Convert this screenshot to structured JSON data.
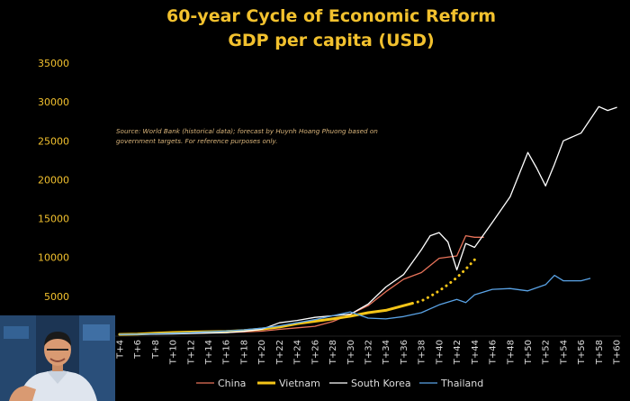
{
  "chart_data": {
    "type": "line",
    "title": "60-year Cycle of Economic Reform",
    "subtitle": "GDP per capita (USD)",
    "note_lines": [
      "Source: World Bank (historical data); forecast by Huynh Hoang Phuong based on",
      "government targets. For reference purposes only."
    ],
    "x_ticks": [
      "T+4",
      "T+6",
      "T+8",
      "T+10",
      "T+12",
      "T+14",
      "T+16",
      "T+18",
      "T+20",
      "T+22",
      "T+24",
      "T+26",
      "T+28",
      "T+30",
      "T+32",
      "T+34",
      "T+36",
      "T+38",
      "T+40",
      "T+42",
      "T+44",
      "T+46",
      "T+48",
      "T+50",
      "T+52",
      "T+54",
      "T+56",
      "T+58",
      "T+60"
    ],
    "y_ticks": [
      5000,
      10000,
      15000,
      20000,
      25000,
      30000,
      35000
    ],
    "xlim": [
      3.5,
      60.5
    ],
    "ylim": [
      0,
      35000
    ],
    "legend_position": "bottom",
    "grid": false,
    "series": [
      {
        "name": "China",
        "color": "#e8735a",
        "x": [
          4,
          6,
          8,
          10,
          12,
          14,
          16,
          18,
          20,
          22,
          24,
          26,
          28,
          30,
          32,
          34,
          36,
          38,
          40,
          42,
          43,
          44,
          45
        ],
        "y": [
          150,
          160,
          180,
          200,
          250,
          300,
          350,
          420,
          520,
          750,
          950,
          1150,
          1750,
          2700,
          3800,
          5600,
          7200,
          8050,
          9900,
          10200,
          12800,
          12600,
          12600
        ]
      },
      {
        "name": "Vietnam",
        "color": "#f5c518",
        "x": [
          4,
          6,
          8,
          10,
          12,
          14,
          16,
          18,
          20,
          22,
          24,
          26,
          28,
          30,
          32,
          34,
          36,
          37
        ],
        "y": [
          100,
          150,
          250,
          350,
          400,
          450,
          500,
          600,
          800,
          1050,
          1500,
          1800,
          2100,
          2450,
          2900,
          3200,
          3800,
          4100
        ]
      },
      {
        "name": "Vietnam forecast",
        "color": "#f5c518",
        "dashed": true,
        "x": [
          37,
          38,
          39,
          40,
          41,
          42,
          43,
          44
        ],
        "y": [
          4100,
          4400,
          5000,
          5700,
          6500,
          7400,
          8500,
          9700
        ]
      },
      {
        "name": "South Korea",
        "color": "#ffffff",
        "x": [
          4,
          6,
          8,
          10,
          12,
          14,
          16,
          18,
          20,
          22,
          24,
          26,
          28,
          30,
          32,
          34,
          36,
          38,
          39,
          40,
          41,
          42,
          43,
          44,
          46,
          48,
          50,
          51,
          52,
          53,
          54,
          56,
          58,
          59,
          60
        ],
        "y": [
          100,
          110,
          130,
          160,
          220,
          280,
          320,
          500,
          750,
          1600,
          1900,
          2300,
          2500,
          2700,
          4000,
          6200,
          7800,
          11000,
          12800,
          13200,
          12000,
          8400,
          11800,
          11300,
          14500,
          17800,
          23500,
          21500,
          19200,
          22000,
          25000,
          26000,
          29400,
          28900,
          29300
        ]
      },
      {
        "name": "Thailand",
        "color": "#5aa3e6",
        "x": [
          4,
          6,
          8,
          10,
          12,
          14,
          16,
          18,
          20,
          22,
          24,
          26,
          28,
          30,
          32,
          34,
          36,
          38,
          40,
          42,
          43,
          44,
          46,
          48,
          50,
          52,
          53,
          54,
          56,
          57
        ],
        "y": [
          100,
          130,
          180,
          250,
          330,
          450,
          550,
          700,
          900,
          1200,
          1600,
          2000,
          2500,
          3000,
          2200,
          2100,
          2400,
          2900,
          3900,
          4600,
          4200,
          5200,
          5900,
          6000,
          5700,
          6500,
          7700,
          7000,
          7000,
          7300
        ]
      }
    ]
  }
}
